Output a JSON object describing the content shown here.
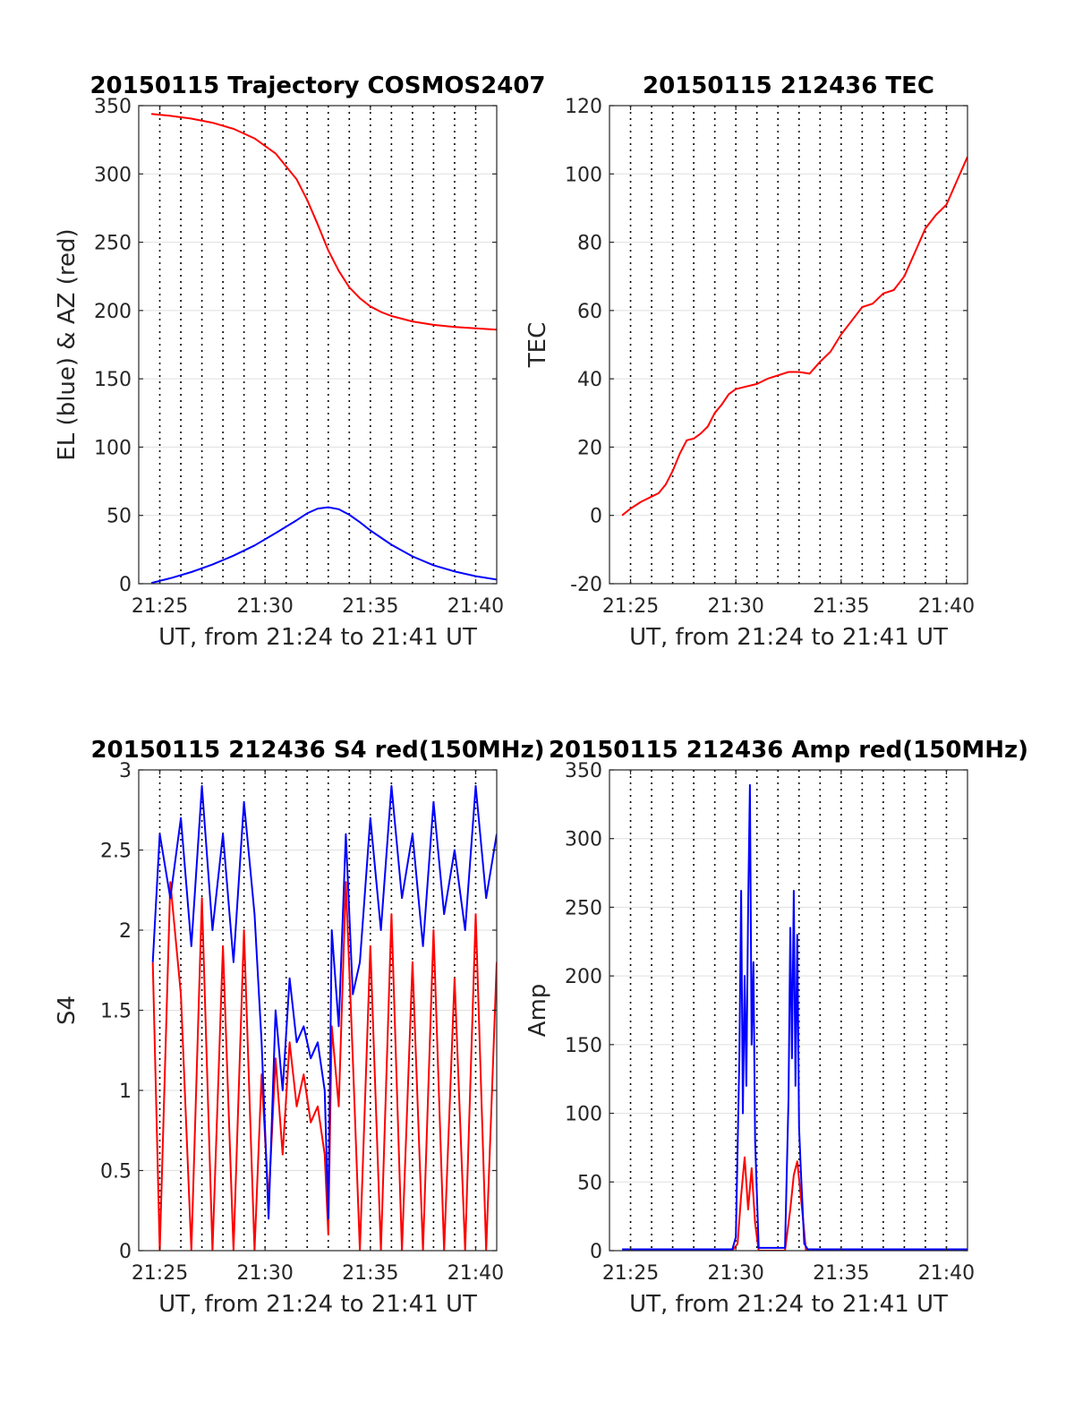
{
  "colors": {
    "red": "#ff0000",
    "blue": "#0000ff"
  },
  "chart_data": [
    {
      "id": "traj",
      "type": "line",
      "title": "20150115 Trajectory COSMOS2407",
      "xlabel": "UT, from 21:24 to 21:41 UT",
      "ylabel": "EL (blue) & AZ (red)",
      "xlim": [
        "21:24:00",
        "21:41:00"
      ],
      "ylim": [
        0,
        350
      ],
      "yticks": [
        0,
        50,
        100,
        150,
        200,
        250,
        300,
        350
      ],
      "ytick_labels": [
        "0",
        "50",
        "100",
        "150",
        "200",
        "250",
        "300",
        "350"
      ],
      "xtick_labels": [
        "21:25",
        "21:30",
        "21:35",
        "21:40"
      ],
      "grid": true,
      "series": [
        {
          "color": "red",
          "x": [
            "21:24:36",
            "21:25:30",
            "21:26:30",
            "21:27:30",
            "21:28:30",
            "21:29:30",
            "21:30:30",
            "21:31:30",
            "21:32:00",
            "21:32:30",
            "21:33:00",
            "21:33:30",
            "21:34:00",
            "21:34:30",
            "21:35:00",
            "21:35:30",
            "21:36:00",
            "21:37:00",
            "21:38:00",
            "21:39:00",
            "21:40:00",
            "21:41:00"
          ],
          "y": [
            344,
            342.5,
            340.5,
            337.5,
            333,
            326,
            315,
            296,
            281,
            263,
            244,
            229,
            217,
            209,
            203,
            199,
            196,
            192,
            189.5,
            188,
            187,
            186
          ]
        },
        {
          "color": "blue",
          "x": [
            "21:24:36",
            "21:25:30",
            "21:26:30",
            "21:27:30",
            "21:28:30",
            "21:29:30",
            "21:30:30",
            "21:31:30",
            "21:32:00",
            "21:32:30",
            "21:33:00",
            "21:33:30",
            "21:34:00",
            "21:34:30",
            "21:35:00",
            "21:36:00",
            "21:37:00",
            "21:38:00",
            "21:39:00",
            "21:40:00",
            "21:41:00"
          ],
          "y": [
            0.5,
            4,
            8.5,
            14,
            20.5,
            28,
            37,
            46.5,
            51.5,
            55,
            56,
            54.5,
            50.5,
            45,
            39,
            28.5,
            20,
            13.5,
            9,
            5.5,
            3
          ]
        }
      ]
    },
    {
      "id": "tec",
      "type": "line",
      "title": "20150115 212436 TEC",
      "xlabel": "UT, from 21:24 to 21:41 UT",
      "ylabel": "TEC",
      "xlim": [
        "21:24:00",
        "21:41:00"
      ],
      "ylim": [
        -20,
        120
      ],
      "yticks": [
        -20,
        0,
        20,
        40,
        60,
        80,
        100,
        120
      ],
      "ytick_labels": [
        "-20",
        "0",
        "20",
        "40",
        "60",
        "80",
        "100",
        "120"
      ],
      "xtick_labels": [
        "21:25",
        "21:30",
        "21:35",
        "21:40"
      ],
      "grid": true,
      "series": [
        {
          "color": "red",
          "x": [
            "21:24:36",
            "21:25:00",
            "21:25:30",
            "21:26:00",
            "21:26:20",
            "21:26:40",
            "21:27:00",
            "21:27:20",
            "21:27:40",
            "21:28:00",
            "21:28:20",
            "21:28:40",
            "21:29:00",
            "21:29:20",
            "21:29:40",
            "21:30:00",
            "21:30:20",
            "21:31:00",
            "21:31:30",
            "21:32:00",
            "21:32:30",
            "21:33:00",
            "21:33:30",
            "21:34:00",
            "21:34:30",
            "21:35:00",
            "21:35:30",
            "21:36:00",
            "21:36:30",
            "21:37:00",
            "21:37:30",
            "21:38:00",
            "21:38:30",
            "21:39:00",
            "21:39:30",
            "21:40:00",
            "21:40:30",
            "21:41:00"
          ],
          "y": [
            0,
            2,
            4,
            5.5,
            6.5,
            9,
            13,
            18,
            22,
            22.5,
            24,
            26,
            30,
            32.5,
            35.5,
            37,
            37.5,
            38.5,
            40,
            41,
            42,
            42,
            41.5,
            45,
            48,
            53,
            57,
            61,
            62,
            65,
            66,
            70,
            77,
            84,
            88,
            91,
            98,
            105
          ]
        }
      ]
    },
    {
      "id": "s4",
      "type": "line",
      "title": "20150115 212436 S4 red(150MHz)",
      "xlabel": "UT, from 21:24 to 21:41 UT",
      "ylabel": "S4",
      "xlim": [
        "21:24:00",
        "21:41:00"
      ],
      "ylim": [
        0,
        3
      ],
      "yticks": [
        0,
        0.5,
        1,
        1.5,
        2,
        2.5,
        3
      ],
      "ytick_labels": [
        "0",
        "0.5",
        "1",
        "1.5",
        "2",
        "2.5",
        "3"
      ],
      "xtick_labels": [
        "21:25",
        "21:30",
        "21:35",
        "21:40"
      ],
      "grid": true,
      "series": [
        {
          "color": "red",
          "x": [
            "21:24:40",
            "21:25:00",
            "21:25:30",
            "21:26:00",
            "21:26:30",
            "21:27:00",
            "21:27:30",
            "21:28:00",
            "21:28:30",
            "21:29:00",
            "21:29:30",
            "21:29:50",
            "21:30:10",
            "21:30:30",
            "21:30:50",
            "21:31:10",
            "21:31:30",
            "21:31:50",
            "21:32:10",
            "21:32:30",
            "21:32:50",
            "21:33:00",
            "21:33:10",
            "21:33:30",
            "21:33:50",
            "21:34:10",
            "21:34:30",
            "21:35:00",
            "21:35:30",
            "21:36:00",
            "21:36:30",
            "21:37:00",
            "21:37:30",
            "21:38:00",
            "21:38:30",
            "21:39:00",
            "21:39:30",
            "21:40:00",
            "21:40:30",
            "21:41:00"
          ],
          "y": [
            1.8,
            0,
            2.3,
            1.6,
            0,
            2.2,
            0,
            1.9,
            0,
            2.0,
            0,
            1.1,
            0.3,
            1.2,
            0.6,
            1.3,
            0.9,
            1.1,
            0.8,
            0.9,
            0.6,
            0.1,
            1.4,
            0.9,
            2.3,
            1.2,
            0,
            1.9,
            0,
            2.1,
            0,
            1.8,
            0,
            2.0,
            0,
            1.7,
            0,
            2.1,
            0,
            1.8
          ]
        },
        {
          "color": "blue",
          "x": [
            "21:24:40",
            "21:25:00",
            "21:25:30",
            "21:26:00",
            "21:26:30",
            "21:27:00",
            "21:27:30",
            "21:28:00",
            "21:28:30",
            "21:29:00",
            "21:29:30",
            "21:29:50",
            "21:30:10",
            "21:30:30",
            "21:30:50",
            "21:31:10",
            "21:31:30",
            "21:31:50",
            "21:32:10",
            "21:32:30",
            "21:32:50",
            "21:33:00",
            "21:33:10",
            "21:33:30",
            "21:33:50",
            "21:34:10",
            "21:34:30",
            "21:35:00",
            "21:35:30",
            "21:36:00",
            "21:36:30",
            "21:37:00",
            "21:37:30",
            "21:38:00",
            "21:38:30",
            "21:39:00",
            "21:39:30",
            "21:40:00",
            "21:40:30",
            "21:41:00"
          ],
          "y": [
            1.8,
            2.6,
            2.2,
            2.7,
            1.9,
            2.9,
            2.0,
            2.6,
            1.8,
            2.8,
            2.1,
            1.3,
            0.2,
            1.5,
            1.0,
            1.7,
            1.3,
            1.4,
            1.2,
            1.3,
            1.0,
            0.2,
            2.0,
            1.4,
            2.6,
            1.6,
            1.8,
            2.7,
            2.0,
            2.9,
            2.2,
            2.6,
            1.9,
            2.8,
            2.1,
            2.5,
            2.0,
            2.9,
            2.2,
            2.6
          ]
        }
      ]
    },
    {
      "id": "amp",
      "type": "line",
      "title": "20150115 212436 Amp red(150MHz)",
      "xlabel": "UT, from 21:24 to 21:41 UT",
      "ylabel": "Amp",
      "xlim": [
        "21:24:00",
        "21:41:00"
      ],
      "ylim": [
        0,
        350
      ],
      "yticks": [
        0,
        50,
        100,
        150,
        200,
        250,
        300,
        350
      ],
      "ytick_labels": [
        "0",
        "50",
        "100",
        "150",
        "200",
        "250",
        "300",
        "350"
      ],
      "xtick_labels": [
        "21:25",
        "21:30",
        "21:35",
        "21:40"
      ],
      "grid": true,
      "series": [
        {
          "color": "red",
          "x": [
            "21:24:36",
            "21:29:50",
            "21:30:05",
            "21:30:15",
            "21:30:25",
            "21:30:35",
            "21:30:45",
            "21:30:55",
            "21:31:05",
            "21:32:20",
            "21:32:35",
            "21:32:45",
            "21:32:55",
            "21:33:05",
            "21:33:20",
            "21:41:00"
          ],
          "y": [
            0,
            0,
            5,
            40,
            68,
            30,
            60,
            20,
            0,
            0,
            30,
            55,
            65,
            40,
            0,
            0
          ]
        },
        {
          "color": "blue",
          "x": [
            "21:24:36",
            "21:29:50",
            "21:30:00",
            "21:30:10",
            "21:30:15",
            "21:30:20",
            "21:30:25",
            "21:30:30",
            "21:30:35",
            "21:30:40",
            "21:30:45",
            "21:30:50",
            "21:30:55",
            "21:31:05",
            "21:32:20",
            "21:32:30",
            "21:32:35",
            "21:32:40",
            "21:32:45",
            "21:32:50",
            "21:32:55",
            "21:33:00",
            "21:33:05",
            "21:33:15",
            "21:33:25",
            "21:41:00"
          ],
          "y": [
            1,
            1,
            10,
            140,
            262,
            100,
            200,
            120,
            250,
            339,
            150,
            210,
            80,
            2,
            2,
            110,
            235,
            140,
            262,
            120,
            230,
            90,
            60,
            5,
            1,
            1
          ]
        }
      ]
    }
  ]
}
